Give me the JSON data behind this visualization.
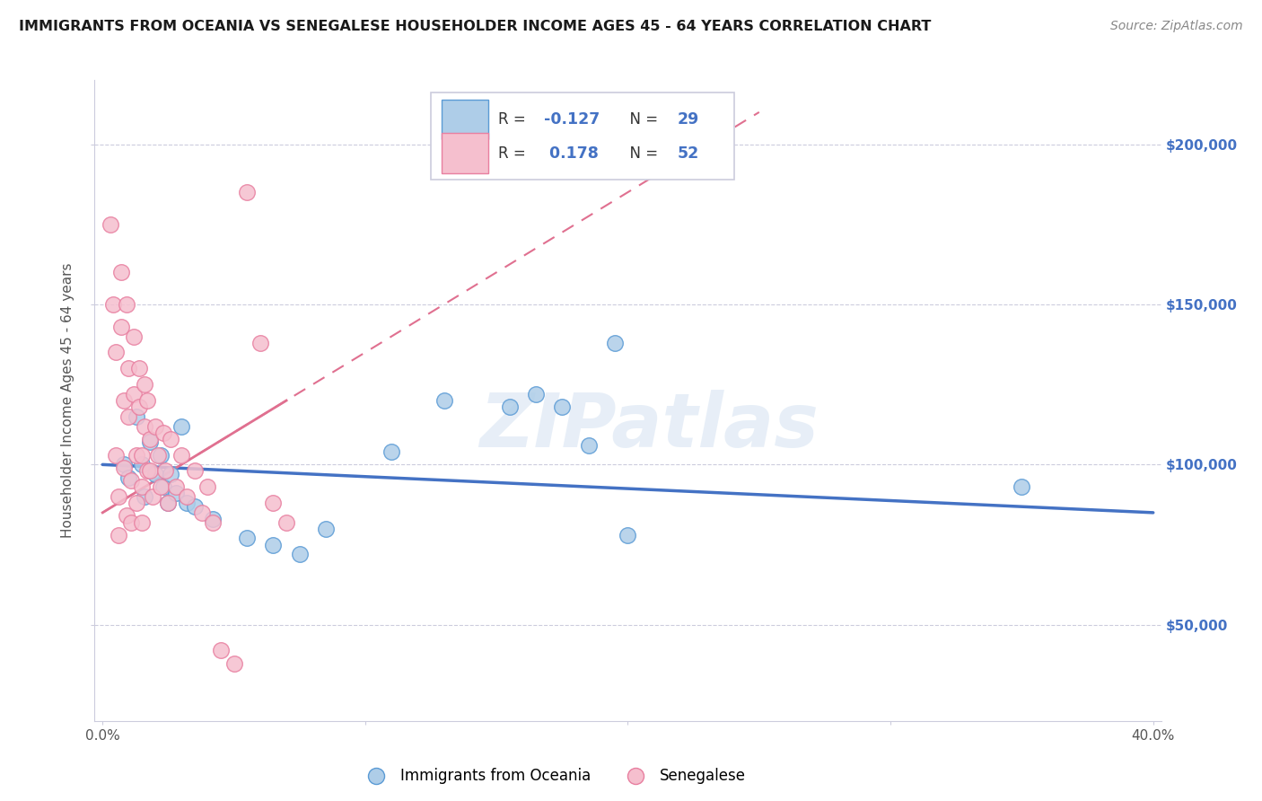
{
  "title": "IMMIGRANTS FROM OCEANIA VS SENEGALESE HOUSEHOLDER INCOME AGES 45 - 64 YEARS CORRELATION CHART",
  "source": "Source: ZipAtlas.com",
  "ylabel": "Householder Income Ages 45 - 64 years",
  "xlim": [
    -0.003,
    0.403
  ],
  "ylim": [
    20000,
    220000
  ],
  "yticks": [
    50000,
    100000,
    150000,
    200000
  ],
  "ytick_labels": [
    "$50,000",
    "$100,000",
    "$150,000",
    "$200,000"
  ],
  "xticks": [
    0.0,
    0.1,
    0.2,
    0.3,
    0.4
  ],
  "xtick_labels": [
    "0.0%",
    "",
    "",
    "",
    "40.0%"
  ],
  "legend_r_blue": "-0.127",
  "legend_n_blue": "29",
  "legend_r_pink": "0.178",
  "legend_n_pink": "52",
  "blue_color": "#aecde8",
  "blue_edge_color": "#5b9bd5",
  "blue_line_color": "#4472c4",
  "pink_color": "#f5bfce",
  "pink_edge_color": "#e87fa0",
  "pink_line_color": "#e07090",
  "watermark": "ZIPatlas",
  "background_color": "#ffffff",
  "grid_color": "#ccccdd",
  "title_color": "#1a1a1a",
  "source_color": "#888888",
  "label_color": "#555555",
  "right_tick_color": "#4472c4",
  "blue_scatter_x": [
    0.008,
    0.01,
    0.013,
    0.015,
    0.016,
    0.018,
    0.02,
    0.022,
    0.023,
    0.025,
    0.026,
    0.028,
    0.03,
    0.032,
    0.035,
    0.042,
    0.055,
    0.065,
    0.075,
    0.11,
    0.13,
    0.155,
    0.165,
    0.175,
    0.185,
    0.195,
    0.35,
    0.2,
    0.085
  ],
  "blue_scatter_y": [
    100000,
    96000,
    115000,
    100000,
    90000,
    107000,
    97000,
    103000,
    93000,
    88000,
    97000,
    91000,
    112000,
    88000,
    87000,
    83000,
    77000,
    75000,
    72000,
    104000,
    120000,
    118000,
    122000,
    118000,
    106000,
    138000,
    93000,
    78000,
    80000
  ],
  "pink_scatter_x": [
    0.003,
    0.004,
    0.005,
    0.005,
    0.006,
    0.006,
    0.007,
    0.007,
    0.008,
    0.008,
    0.009,
    0.009,
    0.01,
    0.01,
    0.011,
    0.011,
    0.012,
    0.012,
    0.013,
    0.013,
    0.014,
    0.014,
    0.015,
    0.015,
    0.015,
    0.016,
    0.016,
    0.017,
    0.017,
    0.018,
    0.018,
    0.019,
    0.02,
    0.021,
    0.022,
    0.023,
    0.024,
    0.025,
    0.026,
    0.028,
    0.03,
    0.032,
    0.035,
    0.038,
    0.04,
    0.042,
    0.045,
    0.05,
    0.055,
    0.06,
    0.065,
    0.07
  ],
  "pink_scatter_y": [
    175000,
    150000,
    135000,
    103000,
    90000,
    78000,
    160000,
    143000,
    120000,
    99000,
    84000,
    150000,
    130000,
    115000,
    95000,
    82000,
    140000,
    122000,
    103000,
    88000,
    130000,
    118000,
    103000,
    93000,
    82000,
    125000,
    112000,
    98000,
    120000,
    108000,
    98000,
    90000,
    112000,
    103000,
    93000,
    110000,
    98000,
    88000,
    108000,
    93000,
    103000,
    90000,
    98000,
    85000,
    93000,
    82000,
    42000,
    38000,
    185000,
    138000,
    88000,
    82000
  ]
}
